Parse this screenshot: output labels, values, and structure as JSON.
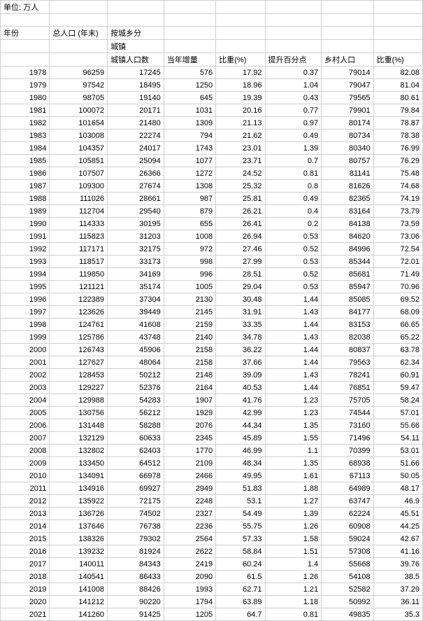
{
  "table": {
    "type": "table",
    "background_color": "#ffffff",
    "grid_color": "#d0d0d0",
    "font_size_pt": 8,
    "unit_label": "单位: 万人",
    "header": {
      "year": "年份",
      "total_pop": "总人口 (年末)",
      "by_urban_rural": "按城乡分",
      "urban": "城镇",
      "urban_pop": "城镇人口数",
      "annual_increase": "当年增量",
      "share_pct": "比重(%)",
      "increase_pct_points": "提升百分点",
      "rural_pop": "乡村人口",
      "share_pct2": "比重(%)"
    },
    "columns": [
      "year",
      "total_pop",
      "urban_pop",
      "annual_increase",
      "urban_share",
      "increase_points",
      "rural_pop",
      "rural_share"
    ],
    "col_align": [
      "right",
      "right",
      "right",
      "right",
      "right",
      "right",
      "right",
      "right"
    ],
    "rows": [
      [
        "1978",
        "96259",
        "17245",
        "576",
        "17.92",
        "0.37",
        "79014",
        "82.08"
      ],
      [
        "1979",
        "97542",
        "18495",
        "1250",
        "18.96",
        "1.04",
        "79047",
        "81.04"
      ],
      [
        "1980",
        "98705",
        "19140",
        "645",
        "19.39",
        "0.43",
        "79565",
        "80.61"
      ],
      [
        "1981",
        "100072",
        "20171",
        "1031",
        "20.16",
        "0.77",
        "79901",
        "79.84"
      ],
      [
        "1982",
        "101654",
        "21480",
        "1309",
        "21.13",
        "0.97",
        "80174",
        "78.87"
      ],
      [
        "1983",
        "103008",
        "22274",
        "794",
        "21.62",
        "0.49",
        "80734",
        "78.38"
      ],
      [
        "1984",
        "104357",
        "24017",
        "1743",
        "23.01",
        "1.39",
        "80340",
        "76.99"
      ],
      [
        "1985",
        "105851",
        "25094",
        "1077",
        "23.71",
        "0.7",
        "80757",
        "76.29"
      ],
      [
        "1986",
        "107507",
        "26366",
        "1272",
        "24.52",
        "0.81",
        "81141",
        "75.48"
      ],
      [
        "1987",
        "109300",
        "27674",
        "1308",
        "25.32",
        "0.8",
        "81626",
        "74.68"
      ],
      [
        "1988",
        "111026",
        "28661",
        "987",
        "25.81",
        "0.49",
        "82365",
        "74.19"
      ],
      [
        "1989",
        "112704",
        "29540",
        "879",
        "26.21",
        "0.4",
        "83164",
        "73.79"
      ],
      [
        "1990",
        "114333",
        "30195",
        "655",
        "26.41",
        "0.2",
        "84138",
        "73.59"
      ],
      [
        "1991",
        "115823",
        "31203",
        "1008",
        "26.94",
        "0.53",
        "84620",
        "73.06"
      ],
      [
        "1992",
        "117171",
        "32175",
        "972",
        "27.46",
        "0.52",
        "84996",
        "72.54"
      ],
      [
        "1993",
        "118517",
        "33173",
        "998",
        "27.99",
        "0.53",
        "85344",
        "72.01"
      ],
      [
        "1994",
        "119850",
        "34169",
        "996",
        "28.51",
        "0.52",
        "85681",
        "71.49"
      ],
      [
        "1995",
        "121121",
        "35174",
        "1005",
        "29.04",
        "0.53",
        "85947",
        "70.96"
      ],
      [
        "1996",
        "122389",
        "37304",
        "2130",
        "30.48",
        "1.44",
        "85085",
        "69.52"
      ],
      [
        "1997",
        "123626",
        "39449",
        "2145",
        "31.91",
        "1.43",
        "84177",
        "68.09"
      ],
      [
        "1998",
        "124761",
        "41608",
        "2159",
        "33.35",
        "1.44",
        "83153",
        "66.65"
      ],
      [
        "1999",
        "125786",
        "43748",
        "2140",
        "34.78",
        "1.43",
        "82038",
        "65.22"
      ],
      [
        "2000",
        "126743",
        "45906",
        "2158",
        "36.22",
        "1.44",
        "80837",
        "63.78"
      ],
      [
        "2001",
        "127627",
        "48064",
        "2158",
        "37.66",
        "1.44",
        "79563",
        "62.34"
      ],
      [
        "2002",
        "128453",
        "50212",
        "2148",
        "39.09",
        "1.43",
        "78241",
        "60.91"
      ],
      [
        "2003",
        "129227",
        "52376",
        "2164",
        "40.53",
        "1.44",
        "76851",
        "59.47"
      ],
      [
        "2004",
        "129988",
        "54283",
        "1907",
        "41.76",
        "1.23",
        "75705",
        "58.24"
      ],
      [
        "2005",
        "130756",
        "56212",
        "1929",
        "42.99",
        "1.23",
        "74544",
        "57.01"
      ],
      [
        "2006",
        "131448",
        "58288",
        "2076",
        "44.34",
        "1.35",
        "73160",
        "55.66"
      ],
      [
        "2007",
        "132129",
        "60633",
        "2345",
        "45.89",
        "1.55",
        "71496",
        "54.11"
      ],
      [
        "2008",
        "132802",
        "62403",
        "1770",
        "46.99",
        "1.1",
        "70399",
        "53.01"
      ],
      [
        "2009",
        "133450",
        "64512",
        "2109",
        "48.34",
        "1.35",
        "68938",
        "51.66"
      ],
      [
        "2010",
        "134091",
        "66978",
        "2466",
        "49.95",
        "1.61",
        "67113",
        "50.05"
      ],
      [
        "2011",
        "134916",
        "69927",
        "2949",
        "51.83",
        "1.88",
        "64989",
        "48.17"
      ],
      [
        "2012",
        "135922",
        "72175",
        "2248",
        "53.1",
        "1.27",
        "63747",
        "46.9"
      ],
      [
        "2013",
        "136726",
        "74502",
        "2327",
        "54.49",
        "1.39",
        "62224",
        "45.51"
      ],
      [
        "2014",
        "137646",
        "76738",
        "2236",
        "55.75",
        "1.26",
        "60908",
        "44.25"
      ],
      [
        "2015",
        "138326",
        "79302",
        "2564",
        "57.33",
        "1.58",
        "59024",
        "42.67"
      ],
      [
        "2016",
        "139232",
        "81924",
        "2622",
        "58.84",
        "1.51",
        "57308",
        "41.16"
      ],
      [
        "2017",
        "140011",
        "84343",
        "2419",
        "60.24",
        "1.4",
        "55668",
        "39.76"
      ],
      [
        "2018",
        "140541",
        "86433",
        "2090",
        "61.5",
        "1.26",
        "54108",
        "38.5"
      ],
      [
        "2019",
        "141008",
        "88426",
        "1993",
        "62.71",
        "1.21",
        "52582",
        "37.29"
      ],
      [
        "2020",
        "141212",
        "90220",
        "1794",
        "63.89",
        "1.18",
        "50992",
        "36.11"
      ],
      [
        "2021",
        "141260",
        "91425",
        "1205",
        "64.7",
        "0.81",
        "49835",
        "35.3"
      ]
    ]
  }
}
